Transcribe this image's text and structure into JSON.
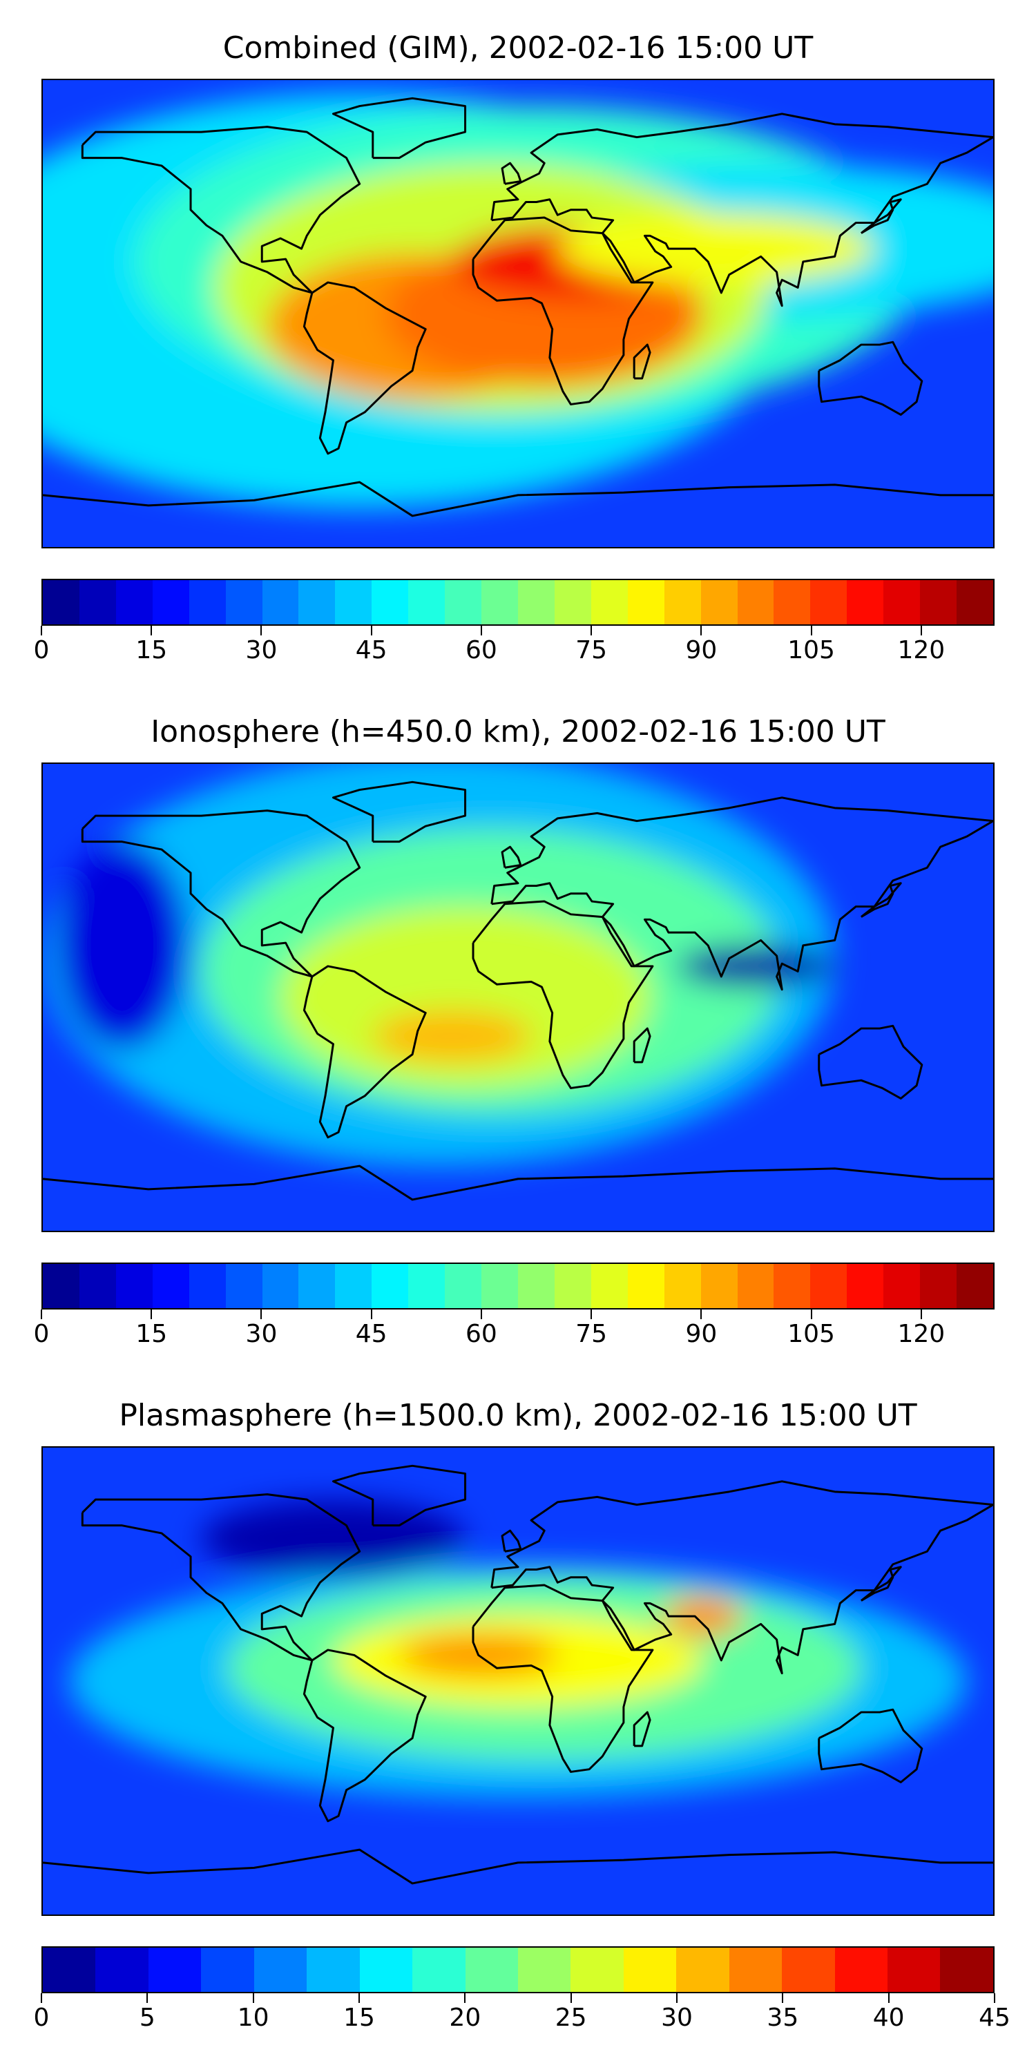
{
  "panels": [
    {
      "title": "Combined (GIM), 2002-02-16 15:00 UT",
      "colorbar": {
        "min": 0,
        "max": 130,
        "levels": 26,
        "ticks": [
          "0",
          "15",
          "30",
          "45",
          "60",
          "75",
          "90",
          "105",
          "120"
        ],
        "tick_values": [
          0,
          15,
          30,
          45,
          60,
          75,
          90,
          105,
          120
        ]
      },
      "map": {
        "background": "#0a3cff",
        "blobs": [
          {
            "lon": -60,
            "lat": 5,
            "rx": 165,
            "ry": 80,
            "level": 45
          },
          {
            "lon": 5,
            "lat": 20,
            "rx": 150,
            "ry": 60,
            "level": 55
          },
          {
            "lon": 90,
            "lat": 28,
            "rx": 120,
            "ry": 30,
            "level": 45
          },
          {
            "lon": -10,
            "lat": 10,
            "rx": 105,
            "ry": 48,
            "level": 75
          },
          {
            "lon": -40,
            "lat": -5,
            "rx": 55,
            "ry": 28,
            "level": 95
          },
          {
            "lon": 10,
            "lat": 0,
            "rx": 60,
            "ry": 28,
            "level": 100
          },
          {
            "lon": 25,
            "lat": 20,
            "rx": 50,
            "ry": 14,
            "level": 115
          },
          {
            "lon": 75,
            "lat": 25,
            "rx": 60,
            "ry": 14,
            "level": 80
          }
        ]
      }
    },
    {
      "title": "Ionosphere  (h=450.0 km), 2002-02-16 15:00 UT",
      "colorbar": {
        "min": 0,
        "max": 130,
        "levels": 26,
        "ticks": [
          "0",
          "15",
          "30",
          "45",
          "60",
          "75",
          "90",
          "105",
          "120"
        ],
        "tick_values": [
          0,
          15,
          30,
          45,
          60,
          75,
          90,
          105,
          120
        ]
      },
      "map": {
        "background": "#0a3cff",
        "blobs": [
          {
            "lon": -30,
            "lat": 15,
            "rx": 150,
            "ry": 80,
            "level": 40
          },
          {
            "lon": -10,
            "lat": 10,
            "rx": 110,
            "ry": 55,
            "level": 60
          },
          {
            "lon": -20,
            "lat": 0,
            "rx": 70,
            "ry": 35,
            "level": 75
          },
          {
            "lon": -25,
            "lat": -15,
            "rx": 30,
            "ry": 10,
            "level": 90
          },
          {
            "lon": 90,
            "lat": 12,
            "rx": 30,
            "ry": 8,
            "level": 5
          },
          {
            "lon": -150,
            "lat": 20,
            "rx": 25,
            "ry": 40,
            "level": 12
          }
        ]
      }
    },
    {
      "title": "Plasmasphere (h=1500.0 km), 2002-02-16 15:00 UT",
      "colorbar": {
        "min": 0,
        "max": 45,
        "levels": 18,
        "ticks": [
          "0",
          "5",
          "10",
          "15",
          "20",
          "25",
          "30",
          "35",
          "40",
          "45"
        ],
        "tick_values": [
          0,
          5,
          10,
          15,
          20,
          25,
          30,
          35,
          40,
          45
        ]
      },
      "map": {
        "background": "#0a3cff",
        "blobs": [
          {
            "lon": 0,
            "lat": 0,
            "rx": 170,
            "ry": 45,
            "level": 14
          },
          {
            "lon": 10,
            "lat": 5,
            "rx": 120,
            "ry": 35,
            "level": 21
          },
          {
            "lon": 0,
            "lat": 8,
            "rx": 70,
            "ry": 18,
            "level": 28
          },
          {
            "lon": -15,
            "lat": 10,
            "rx": 30,
            "ry": 8,
            "level": 33
          },
          {
            "lon": 70,
            "lat": 25,
            "rx": 15,
            "ry": 8,
            "level": 33
          },
          {
            "lon": -70,
            "lat": 55,
            "rx": 50,
            "ry": 15,
            "level": 2
          }
        ]
      }
    }
  ]
}
